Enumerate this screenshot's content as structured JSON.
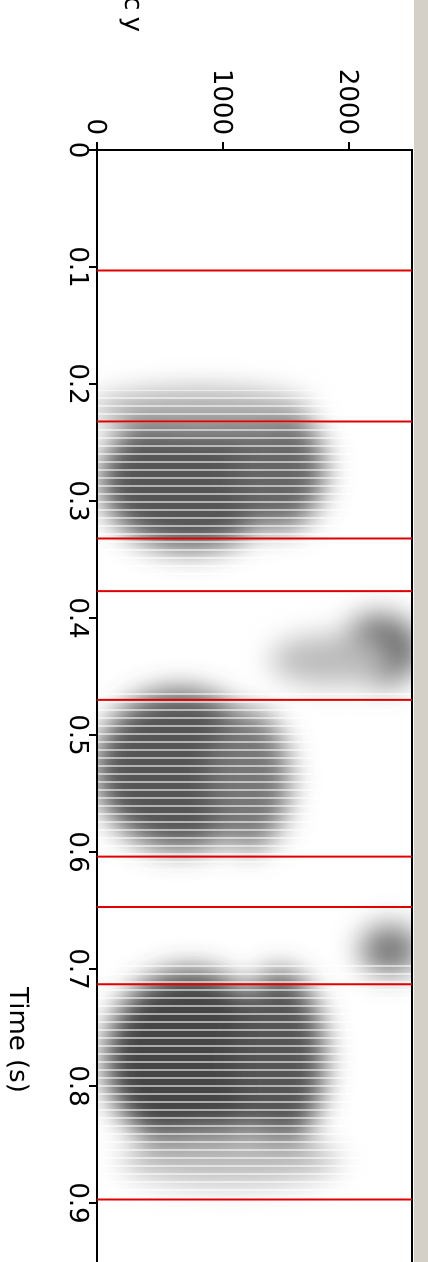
{
  "chart_data": {
    "type": "spectrogram",
    "x_label": "Time (s)",
    "y_label": "Frequency",
    "xlim": [
      0,
      0.95
    ],
    "xticks": [
      0,
      0.1,
      0.2,
      0.3,
      0.4,
      0.5,
      0.6,
      0.7,
      0.8,
      0.9
    ],
    "ylim": [
      0,
      2500
    ],
    "yticks": [
      0,
      1000,
      2000
    ],
    "boundaries": [
      0.103,
      0.232,
      0.332,
      0.377,
      0.47,
      0.604,
      0.647,
      0.713,
      0.897
    ],
    "boundary_color": "#e00000"
  }
}
